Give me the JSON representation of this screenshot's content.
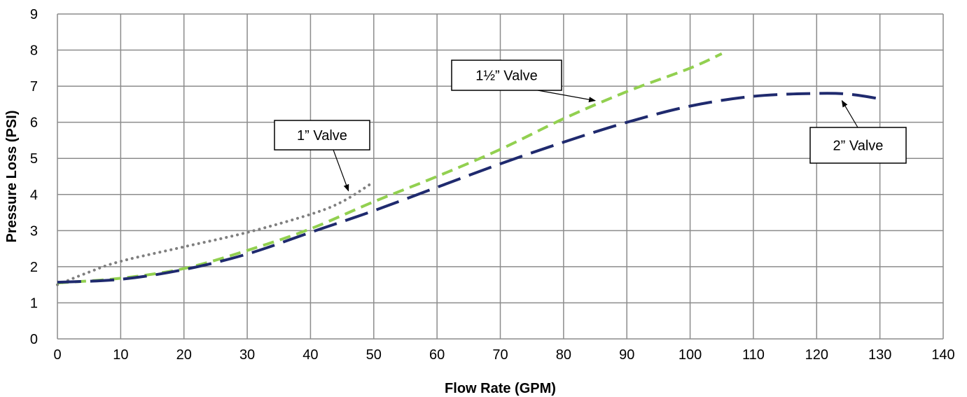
{
  "chart_data": {
    "type": "line",
    "xlabel": "Flow Rate (GPM)",
    "ylabel": "Pressure Loss (PSI)",
    "xlim": [
      0,
      140
    ],
    "ylim": [
      0,
      9
    ],
    "x_ticks": [
      "0",
      "10",
      "20",
      "30",
      "40",
      "50",
      "60",
      "70",
      "80",
      "90",
      "100",
      "110",
      "120",
      "130",
      "140"
    ],
    "y_ticks": [
      "0",
      "1",
      "2",
      "3",
      "4",
      "5",
      "6",
      "7",
      "8",
      "9"
    ],
    "grid": true,
    "series": [
      {
        "name": "1” Valve",
        "color": "#7f7f7f",
        "style": "dotted",
        "points": [
          [
            0,
            1.5
          ],
          [
            5,
            1.85
          ],
          [
            10,
            2.15
          ],
          [
            20,
            2.55
          ],
          [
            30,
            2.95
          ],
          [
            40,
            3.45
          ],
          [
            45,
            3.8
          ],
          [
            50,
            4.35
          ]
        ]
      },
      {
        "name": "1½” Valve",
        "color": "#92d050",
        "style": "dashed",
        "points": [
          [
            0,
            1.55
          ],
          [
            10,
            1.68
          ],
          [
            20,
            1.95
          ],
          [
            30,
            2.45
          ],
          [
            40,
            3.05
          ],
          [
            50,
            3.8
          ],
          [
            60,
            4.5
          ],
          [
            70,
            5.25
          ],
          [
            80,
            6.1
          ],
          [
            90,
            6.85
          ],
          [
            100,
            7.5
          ],
          [
            105,
            7.9
          ]
        ]
      },
      {
        "name": "2” Valve",
        "color": "#1f2a6e",
        "style": "longdash",
        "points": [
          [
            0,
            1.57
          ],
          [
            10,
            1.65
          ],
          [
            20,
            1.92
          ],
          [
            30,
            2.35
          ],
          [
            40,
            2.95
          ],
          [
            50,
            3.55
          ],
          [
            60,
            4.2
          ],
          [
            70,
            4.85
          ],
          [
            80,
            5.45
          ],
          [
            90,
            6.0
          ],
          [
            100,
            6.45
          ],
          [
            110,
            6.72
          ],
          [
            120,
            6.8
          ],
          [
            125,
            6.78
          ],
          [
            130,
            6.65
          ]
        ]
      }
    ],
    "annotations": [
      {
        "text": "1” Valve",
        "target": [
          46,
          4.1
        ]
      },
      {
        "text": "1½” Valve",
        "target": [
          85,
          6.6
        ]
      },
      {
        "text": "2” Valve",
        "target": [
          124,
          6.6
        ]
      }
    ]
  }
}
